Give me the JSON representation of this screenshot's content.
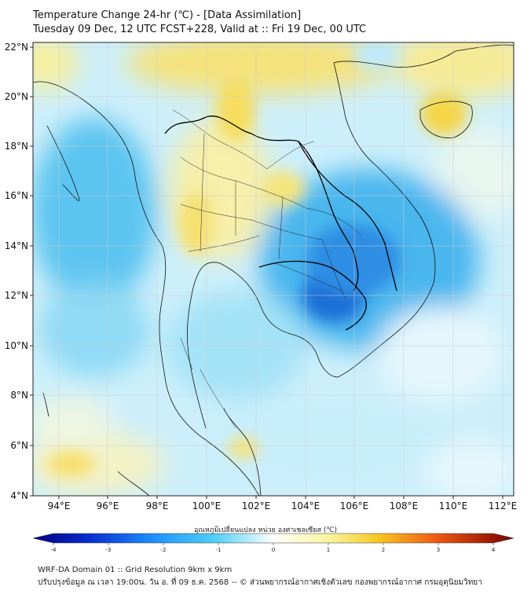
{
  "header": {
    "title": "Temperature Change 24-hr (℃) - [Data Assimilation]",
    "subtitle": "Tuesday 09 Dec, 12 UTC FCST+228, Valid at :: Fri 19 Dec, 00 UTC"
  },
  "map": {
    "lat_labels": [
      "22°N",
      "20°N",
      "18°N",
      "16°N",
      "14°N",
      "12°N",
      "10°N",
      "8°N",
      "6°N",
      "4°N"
    ],
    "lon_labels": [
      "94°E",
      "96°E",
      "98°E",
      "100°E",
      "102°E",
      "104°E",
      "106°E",
      "108°E",
      "110°E",
      "112°E"
    ],
    "lat_range": [
      4,
      22.3
    ],
    "lon_range": [
      93,
      112.5
    ],
    "colors": {
      "cold_strong": "#1f6fd6",
      "cold": "#36a6ec",
      "cool": "#9fe0f7",
      "neutral": "#eefaff",
      "warm": "#f7f0a6",
      "warm_strong": "#f5d84a"
    }
  },
  "colorbar": {
    "label": "อุณหภูมิเปลี่ยนแปลง หน่วย องศาเซลเซียส (℃)",
    "ticks": [
      "-4",
      "-3",
      "-2",
      "-1",
      "0",
      "1",
      "2",
      "3",
      "4"
    ],
    "range": [
      -4,
      4
    ]
  },
  "footer": {
    "line1": "WRF-DA Domain 01 :: Grid Resolution 9km x 9km",
    "line2": "ปรับปรุงข้อมูล ณ เวลา 19:00น. วัน อ. ที่ 09 ธ.ค. 2568 -- © ส่วนพยากรณ์อากาศเชิงตัวเลข กองพยากรณ์อากาศ กรมอุตุนิยมวิทยา"
  }
}
